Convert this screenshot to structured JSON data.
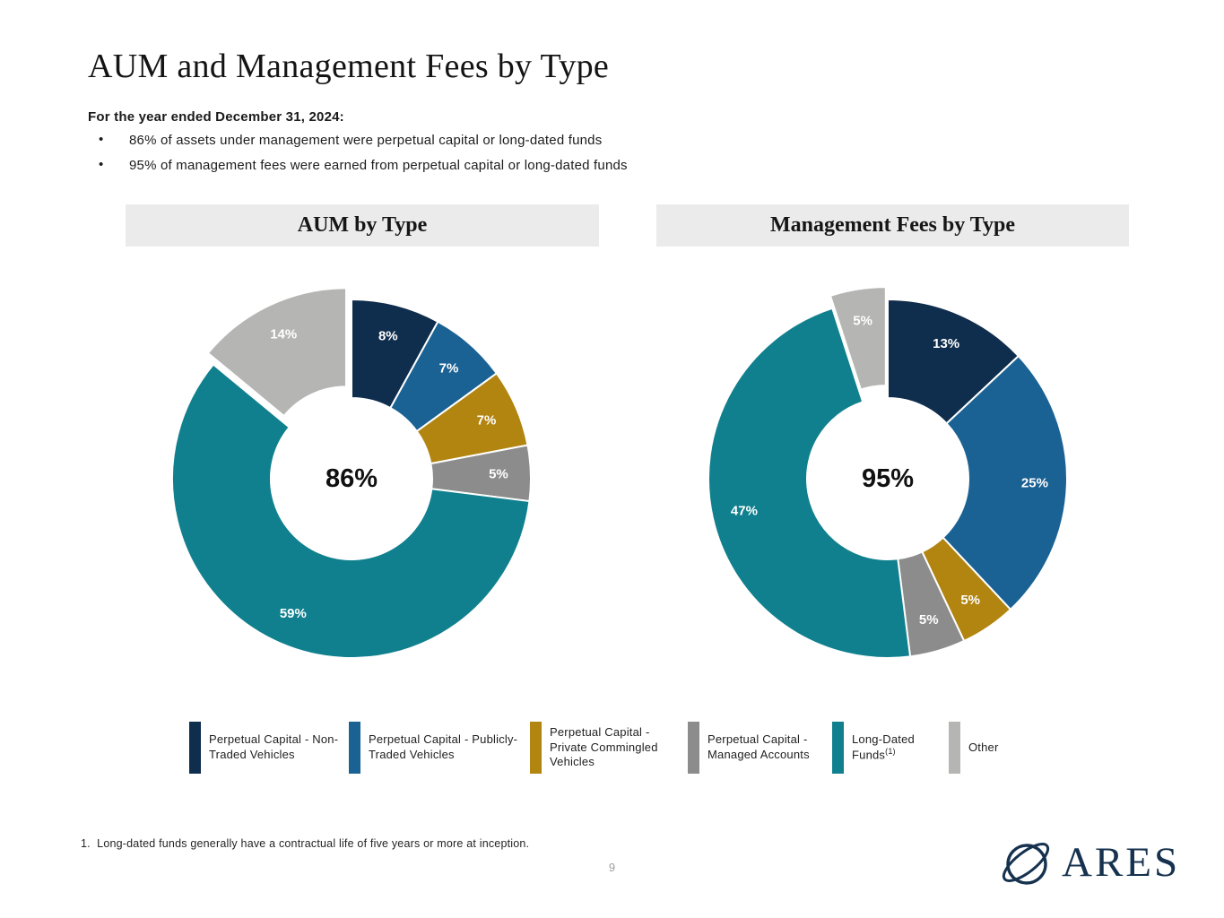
{
  "header": {
    "title": "AUM and Management Fees by Type",
    "subtitle": "For the year ended December 31, 2024:",
    "bullets": [
      "86% of assets under management were perpetual capital or long-dated funds",
      "95% of management fees were earned from perpetual capital or long-dated funds"
    ]
  },
  "chart_data": [
    {
      "type": "pie",
      "subtype": "donut",
      "title": "AUM by Type",
      "center_label": "86%",
      "slices": [
        {
          "label": "Perpetual Capital - Non-Traded Vehicles",
          "value": 8,
          "display": "8%",
          "color": "#0f2d4c",
          "exploded": false
        },
        {
          "label": "Perpetual Capital - Publicly-Traded Vehicles",
          "value": 7,
          "display": "7%",
          "color": "#1b6294",
          "exploded": false
        },
        {
          "label": "Perpetual Capital - Private Commingled Vehicles",
          "value": 7,
          "display": "7%",
          "color": "#b28410",
          "exploded": false
        },
        {
          "label": "Perpetual Capital - Managed Accounts",
          "value": 5,
          "display": "5%",
          "color": "#8c8c8c",
          "exploded": false
        },
        {
          "label": "Long-Dated Funds",
          "value": 59,
          "display": "59%",
          "color": "#10808e",
          "exploded": false
        },
        {
          "label": "Other",
          "value": 14,
          "display": "14%",
          "color": "#b5b5b3",
          "exploded": true
        }
      ]
    },
    {
      "type": "pie",
      "subtype": "donut",
      "title": "Management Fees by Type",
      "center_label": "95%",
      "slices": [
        {
          "label": "Perpetual Capital - Non-Traded Vehicles",
          "value": 13,
          "display": "13%",
          "color": "#0f2d4c",
          "exploded": false
        },
        {
          "label": "Perpetual Capital - Publicly-Traded Vehicles",
          "value": 25,
          "display": "25%",
          "color": "#1b6294",
          "exploded": false
        },
        {
          "label": "Perpetual Capital - Private Commingled Vehicles",
          "value": 5,
          "display": "5%",
          "color": "#b28410",
          "exploded": false
        },
        {
          "label": "Perpetual Capital - Managed Accounts",
          "value": 5,
          "display": "5%",
          "color": "#8c8c8c",
          "exploded": false
        },
        {
          "label": "Long-Dated Funds",
          "value": 47,
          "display": "47%",
          "color": "#10808e",
          "exploded": false
        },
        {
          "label": "Other",
          "value": 5,
          "display": "5%",
          "color": "#b5b5b3",
          "exploded": true
        }
      ]
    }
  ],
  "legend": {
    "items": [
      {
        "label": "Perpetual Capital - Non-Traded Vehicles",
        "sup": "",
        "color": "#0f2d4c"
      },
      {
        "label": "Perpetual Capital - Publicly-Traded Vehicles",
        "sup": "",
        "color": "#1b6294"
      },
      {
        "label": "Perpetual Capital - Private Commingled Vehicles",
        "sup": "",
        "color": "#b28410"
      },
      {
        "label": "Perpetual Capital - Managed Accounts",
        "sup": "",
        "color": "#8c8c8c"
      },
      {
        "label": "Long-Dated Funds",
        "sup": "(1)",
        "color": "#10808e"
      },
      {
        "label": "Other",
        "sup": "",
        "color": "#b5b5b3"
      }
    ]
  },
  "footer": {
    "footnote": "1.  Long-dated funds generally have a contractual life of five years or more at inception.",
    "page_number": "9",
    "logo_text": "ARES"
  }
}
